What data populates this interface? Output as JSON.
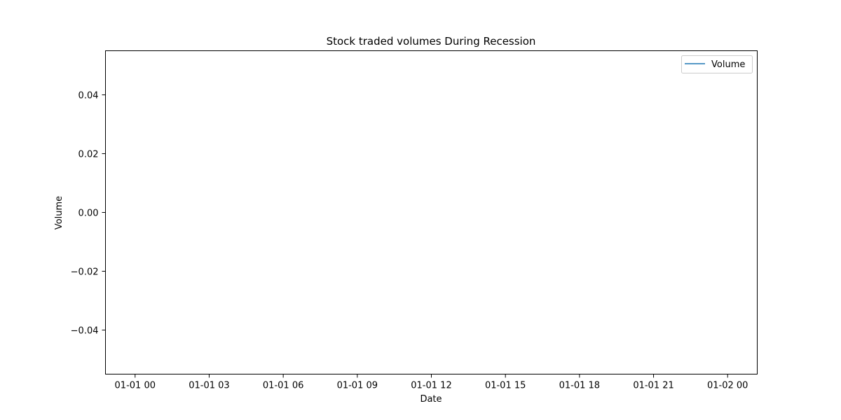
{
  "chart_data": {
    "type": "line",
    "title": "Stock traded volumes During Recession",
    "xlabel": "Date",
    "ylabel": "Volume",
    "x_tick_labels": [
      "01-01 00",
      "01-01 03",
      "01-01 06",
      "01-01 09",
      "01-01 12",
      "01-01 15",
      "01-01 18",
      "01-01 21",
      "01-02 00"
    ],
    "x_ticks_hours": [
      0,
      3,
      6,
      9,
      12,
      15,
      18,
      21,
      24
    ],
    "xlim_hours": [
      -1.2,
      25.2
    ],
    "y_ticks": [
      0.04,
      0.02,
      0.0,
      -0.02,
      -0.04
    ],
    "y_tick_labels": [
      "0.04",
      "0.02",
      "0.00",
      "−0.02",
      "−0.04"
    ],
    "ylim": [
      -0.055,
      0.055
    ],
    "grid": false,
    "legend_position": "upper-right",
    "series": [
      {
        "name": "Volume",
        "color": "#1f77b4",
        "values": []
      }
    ]
  }
}
